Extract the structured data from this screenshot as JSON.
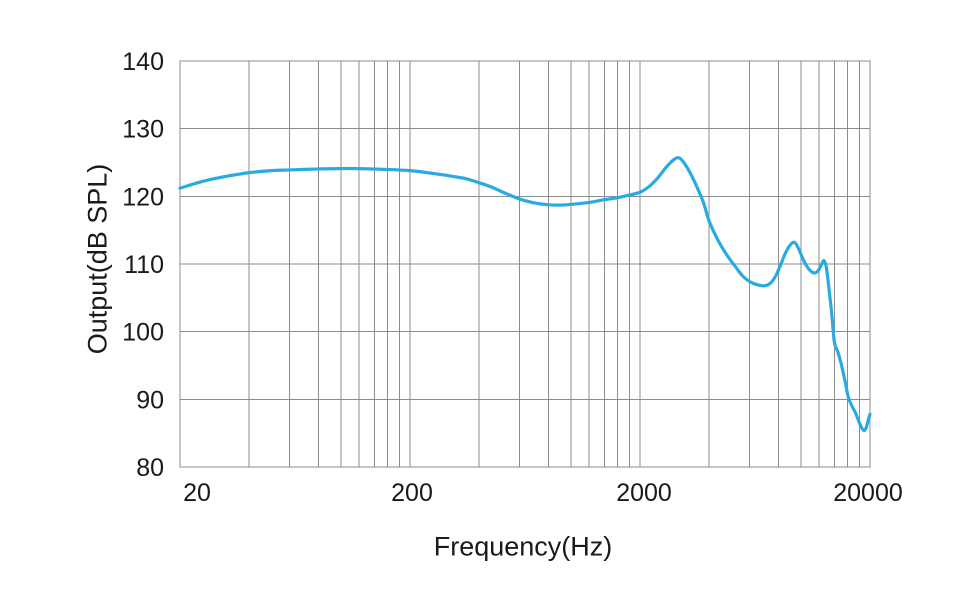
{
  "chart_data": {
    "type": "line",
    "xlabel": "Frequency(Hz)",
    "ylabel": "Output(dB SPL)",
    "x_scale": "log",
    "xlim": [
      20,
      20000
    ],
    "ylim": [
      80,
      140
    ],
    "grid": true,
    "legend": "none",
    "x_tick_values": [
      20,
      200,
      2000,
      20000
    ],
    "x_tick_labels": [
      "20",
      "200",
      "2000",
      "20000"
    ],
    "y_tick_values": [
      80,
      90,
      100,
      110,
      120,
      130,
      140
    ],
    "y_tick_labels": [
      "80",
      "90",
      "100",
      "110",
      "120",
      "130",
      "140"
    ],
    "x_gridlines": [
      40,
      60,
      80,
      100,
      120,
      140,
      160,
      180,
      200,
      400,
      600,
      800,
      1000,
      1200,
      1400,
      1600,
      1800,
      2000,
      4000,
      6000,
      8000,
      10000,
      12000,
      14000,
      16000,
      18000,
      20000
    ],
    "y_gridlines": [
      90,
      100,
      110,
      120,
      130
    ],
    "colors": {
      "line": "#29ABE2",
      "grid": "#8c8c8c",
      "axis_border": "#8c8c8c",
      "text": "#1a1a1a",
      "background": "#ffffff"
    },
    "series": [
      {
        "name": "Output",
        "points": [
          [
            20,
            121.2
          ],
          [
            25,
            122.2
          ],
          [
            30,
            122.8
          ],
          [
            35,
            123.2
          ],
          [
            40,
            123.5
          ],
          [
            50,
            123.8
          ],
          [
            60,
            123.9
          ],
          [
            80,
            124.05
          ],
          [
            100,
            124.1
          ],
          [
            120,
            124.1
          ],
          [
            150,
            124.0
          ],
          [
            200,
            123.8
          ],
          [
            250,
            123.4
          ],
          [
            300,
            123.0
          ],
          [
            350,
            122.6
          ],
          [
            400,
            122.0
          ],
          [
            450,
            121.4
          ],
          [
            500,
            120.7
          ],
          [
            550,
            120.1
          ],
          [
            600,
            119.6
          ],
          [
            700,
            119.0
          ],
          [
            800,
            118.75
          ],
          [
            900,
            118.7
          ],
          [
            1000,
            118.8
          ],
          [
            1200,
            119.1
          ],
          [
            1400,
            119.5
          ],
          [
            1600,
            119.8
          ],
          [
            1800,
            120.2
          ],
          [
            2000,
            120.6
          ],
          [
            2200,
            121.5
          ],
          [
            2400,
            122.8
          ],
          [
            2600,
            124.3
          ],
          [
            2800,
            125.4
          ],
          [
            2950,
            125.7
          ],
          [
            3100,
            125.0
          ],
          [
            3300,
            123.5
          ],
          [
            3600,
            120.8
          ],
          [
            3800,
            118.8
          ],
          [
            4000,
            116.3
          ],
          [
            4400,
            113.3
          ],
          [
            4800,
            111.2
          ],
          [
            5200,
            109.6
          ],
          [
            5600,
            108.2
          ],
          [
            6000,
            107.4
          ],
          [
            6500,
            106.9
          ],
          [
            7000,
            106.8
          ],
          [
            7400,
            107.2
          ],
          [
            7800,
            108.3
          ],
          [
            8200,
            110.0
          ],
          [
            8600,
            111.7
          ],
          [
            9000,
            112.8
          ],
          [
            9400,
            113.2
          ],
          [
            9800,
            112.2
          ],
          [
            10200,
            110.8
          ],
          [
            10700,
            109.5
          ],
          [
            11200,
            108.8
          ],
          [
            11600,
            108.7
          ],
          [
            12000,
            109.2
          ],
          [
            12300,
            109.9
          ],
          [
            12600,
            110.5
          ],
          [
            12900,
            109.6
          ],
          [
            13200,
            107.0
          ],
          [
            13600,
            103.0
          ],
          [
            14000,
            98.5
          ],
          [
            14500,
            97.0
          ],
          [
            15000,
            95.2
          ],
          [
            15600,
            92.6
          ],
          [
            16100,
            90.3
          ],
          [
            16700,
            89.0
          ],
          [
            17300,
            88.0
          ],
          [
            17900,
            86.7
          ],
          [
            18400,
            85.8
          ],
          [
            18800,
            85.4
          ],
          [
            19200,
            85.7
          ],
          [
            19600,
            86.8
          ],
          [
            20000,
            87.8
          ]
        ]
      }
    ]
  }
}
